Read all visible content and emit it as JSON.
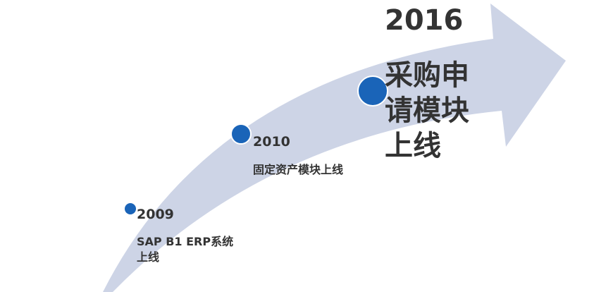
{
  "colors": {
    "arrow": "#cdd4e6",
    "dot": "#1a64b8",
    "text": "#333333"
  },
  "milestones": [
    {
      "year": "2009",
      "text": "SAP B1 ERP系统上线"
    },
    {
      "year": "2010",
      "text": "固定资产模块上线"
    },
    {
      "year": "2016",
      "text": "采购申请模块上线"
    }
  ]
}
